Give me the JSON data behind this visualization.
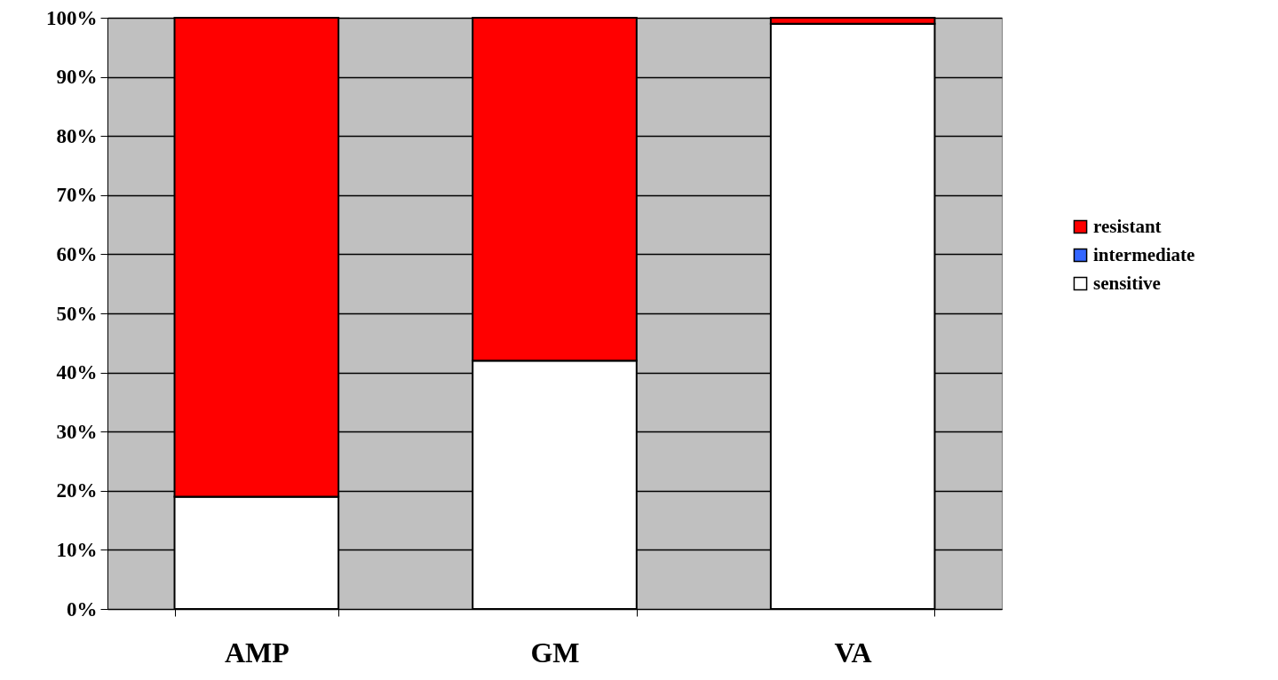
{
  "chart_data": {
    "type": "bar",
    "stacked": true,
    "categories": [
      "AMP",
      "GM",
      "VA"
    ],
    "series": [
      {
        "name": "sensitive",
        "color": "#ffffff",
        "values": [
          19,
          42,
          99
        ]
      },
      {
        "name": "intermediate",
        "color": "#3366ff",
        "values": [
          0,
          0,
          0
        ]
      },
      {
        "name": "resistant",
        "color": "#ff0000",
        "values": [
          81,
          58,
          1
        ]
      }
    ],
    "ylim": [
      0,
      100
    ],
    "yticks": [
      {
        "value": 0,
        "label": "0%"
      },
      {
        "value": 10,
        "label": "10%"
      },
      {
        "value": 20,
        "label": "20%"
      },
      {
        "value": 30,
        "label": "30%"
      },
      {
        "value": 40,
        "label": "40%"
      },
      {
        "value": 50,
        "label": "50%"
      },
      {
        "value": 60,
        "label": "60%"
      },
      {
        "value": 70,
        "label": "70%"
      },
      {
        "value": 80,
        "label": "80%"
      },
      {
        "value": 90,
        "label": "90%"
      },
      {
        "value": 100,
        "label": "100%"
      }
    ],
    "grid": "y",
    "legend": "right"
  }
}
